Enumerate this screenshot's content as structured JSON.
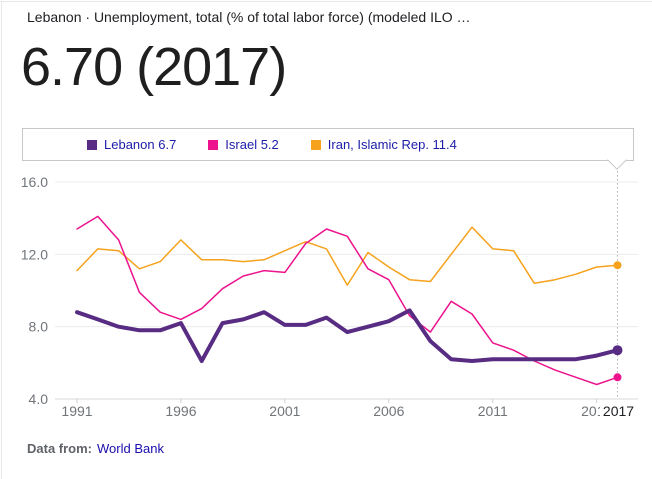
{
  "card": {
    "title": "Lebanon · Unemployment, total (% of total labor force) (modeled ILO …",
    "big_value": "6.70 (2017)"
  },
  "legend": {
    "items": [
      {
        "label": "Lebanon 6.7",
        "color": "#582c83"
      },
      {
        "label": "Israel 5.2",
        "color": "#ec138d"
      },
      {
        "label": "Iran, Islamic Rep. 11.4",
        "color": "#f6a21d"
      }
    ]
  },
  "chart_data": {
    "type": "line",
    "title": "Lebanon · Unemployment, total (% of total labor force) (modeled ILO …",
    "xlabel": "",
    "ylabel": "",
    "grid": true,
    "legend_position": "top",
    "ylim": [
      4,
      16
    ],
    "x": [
      1991,
      1992,
      1993,
      1994,
      1995,
      1996,
      1997,
      1998,
      1999,
      2000,
      2001,
      2002,
      2003,
      2004,
      2005,
      2006,
      2007,
      2008,
      2009,
      2010,
      2011,
      2012,
      2013,
      2014,
      2015,
      2016,
      2017
    ],
    "y_ticks": [
      {
        "value": 16,
        "label": "16.0"
      },
      {
        "value": 12,
        "label": "12.0"
      },
      {
        "value": 8,
        "label": "8.0"
      },
      {
        "value": 4,
        "label": "4.0"
      }
    ],
    "x_ticks": [
      {
        "year": 1991,
        "label": "1991"
      },
      {
        "year": 1996,
        "label": "1996"
      },
      {
        "year": 2001,
        "label": "2001"
      },
      {
        "year": 2006,
        "label": "2006"
      },
      {
        "year": 2011,
        "label": "2011"
      },
      {
        "year": 2016,
        "label": "2016",
        "clipped": true
      }
    ],
    "highlight": {
      "year": 2017,
      "label": "2017"
    },
    "series": [
      {
        "name": "Iran, Islamic Rep.",
        "color": "#f6a21d",
        "line_width": 1.5,
        "end_value": 11.4,
        "values": [
          11.1,
          12.3,
          12.2,
          11.2,
          11.6,
          12.8,
          11.7,
          11.7,
          11.6,
          11.7,
          12.2,
          12.7,
          12.3,
          10.3,
          12.1,
          11.3,
          10.6,
          10.5,
          12.0,
          13.5,
          12.3,
          12.2,
          10.4,
          10.6,
          10.9,
          11.3,
          11.4
        ]
      },
      {
        "name": "Israel",
        "color": "#ec138d",
        "line_width": 1.5,
        "end_value": 5.2,
        "values": [
          13.4,
          14.1,
          12.8,
          9.9,
          8.8,
          8.4,
          9.0,
          10.1,
          10.8,
          11.1,
          11.0,
          12.6,
          13.4,
          13.0,
          11.2,
          10.6,
          8.6,
          7.7,
          9.4,
          8.7,
          7.1,
          6.7,
          6.1,
          5.6,
          5.2,
          4.8,
          5.2
        ]
      },
      {
        "name": "Lebanon",
        "color": "#582c83",
        "line_width": 4,
        "end_value": 6.7,
        "values": [
          8.8,
          8.4,
          8.0,
          7.8,
          7.8,
          8.2,
          6.1,
          8.2,
          8.4,
          8.8,
          8.1,
          8.1,
          8.5,
          7.7,
          8.0,
          8.3,
          8.9,
          7.2,
          6.2,
          6.1,
          6.2,
          6.2,
          6.2,
          6.2,
          6.2,
          6.4,
          6.7
        ]
      }
    ]
  },
  "footer": {
    "prefix": "Data from:",
    "source_link": "World Bank"
  }
}
